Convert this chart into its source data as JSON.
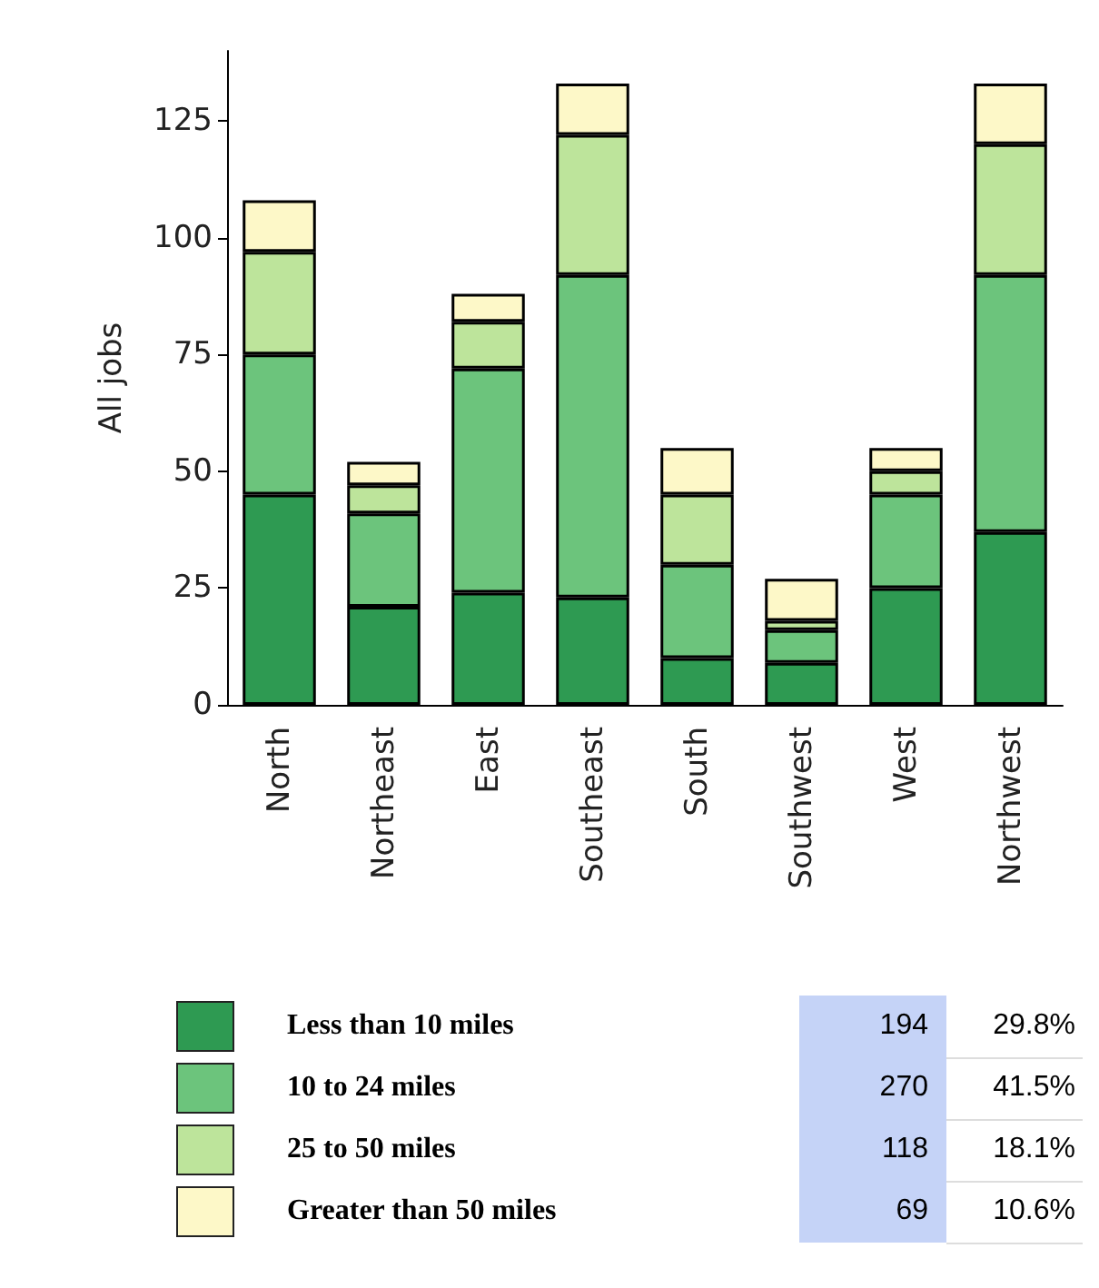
{
  "chart_data": {
    "type": "bar",
    "stacked": true,
    "ylabel": "All jobs",
    "categories": [
      "North",
      "Northeast",
      "East",
      "Southeast",
      "South",
      "Southwest",
      "West",
      "Northwest"
    ],
    "series": [
      {
        "name": "Less than 10 miles",
        "color": "#2e9a52",
        "values": [
          45,
          21,
          24,
          23,
          10,
          9,
          25,
          37
        ]
      },
      {
        "name": "10 to 24 miles",
        "color": "#6cc47c",
        "values": [
          30,
          20,
          48,
          69,
          20,
          7,
          20,
          55
        ]
      },
      {
        "name": "25 to 50 miles",
        "color": "#bde49b",
        "values": [
          22,
          6,
          10,
          30,
          15,
          2,
          5,
          28
        ]
      },
      {
        "name": "Greater than 50 miles",
        "color": "#fdf8c8",
        "values": [
          11,
          5,
          6,
          11,
          10,
          9,
          5,
          13
        ]
      }
    ],
    "ylim": [
      0,
      140
    ],
    "yticks": [
      0,
      25,
      50,
      75,
      100,
      125
    ],
    "grid": false,
    "legend": "bottom",
    "annotations": [
      "194",
      "29.8%",
      "270",
      "41.5%",
      "118",
      "18.1%",
      "69",
      "10.6%"
    ]
  }
}
